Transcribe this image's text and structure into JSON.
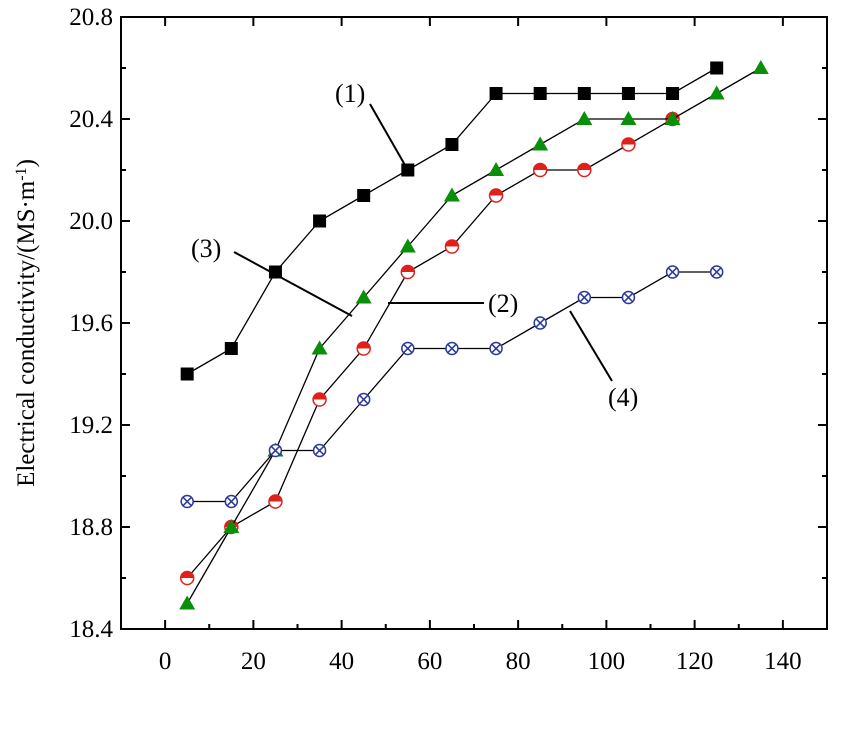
{
  "chart_data": {
    "type": "line",
    "xlabel": "",
    "ylabel": "Electrical conductivity/(MS·m",
    "ylabel_sup": "-1",
    "ylabel_close": ")",
    "xlim": [
      -10,
      150
    ],
    "ylim": [
      18.4,
      20.8
    ],
    "x_ticks": [
      0,
      20,
      40,
      60,
      80,
      100,
      120,
      140
    ],
    "x_tick_labels": [
      "0",
      "20",
      "40",
      "60",
      "80",
      "100",
      "120",
      "140"
    ],
    "y_ticks": [
      18.4,
      18.8,
      19.2,
      19.6,
      20.0,
      20.4,
      20.8
    ],
    "y_tick_labels": [
      "18.4",
      "18.8",
      "19.2",
      "19.6",
      "20.0",
      "20.4",
      "20.8"
    ],
    "grid": false,
    "series": [
      {
        "id": "s1",
        "marker": "square",
        "color": "#000000",
        "x": [
          5,
          15,
          25,
          35,
          45,
          55,
          65,
          75,
          85,
          95,
          105,
          115,
          125
        ],
        "y": [
          19.4,
          19.5,
          19.8,
          20.0,
          20.1,
          20.2,
          20.3,
          20.5,
          20.5,
          20.5,
          20.5,
          20.5,
          20.6
        ]
      },
      {
        "id": "s2",
        "marker": "half-circle",
        "color": "#e0201b",
        "x": [
          5,
          15,
          25,
          35,
          45,
          55,
          65,
          75,
          85,
          95,
          105,
          115
        ],
        "y": [
          18.6,
          18.8,
          18.9,
          19.3,
          19.5,
          19.8,
          19.9,
          20.1,
          20.2,
          20.2,
          20.3,
          20.4
        ]
      },
      {
        "id": "s3",
        "marker": "triangle",
        "color": "#0a8f0a",
        "x": [
          5,
          15,
          25,
          35,
          45,
          55,
          65,
          75,
          85,
          95,
          105,
          115,
          125,
          135
        ],
        "y": [
          18.5,
          18.8,
          19.1,
          19.5,
          19.7,
          19.9,
          20.1,
          20.2,
          20.3,
          20.4,
          20.4,
          20.4,
          20.5,
          20.6
        ]
      },
      {
        "id": "s4",
        "marker": "crossed-circle",
        "color": "#2b3a9b",
        "x": [
          5,
          15,
          25,
          35,
          45,
          55,
          65,
          75,
          85,
          95,
          105,
          115,
          125
        ],
        "y": [
          18.9,
          18.9,
          19.1,
          19.1,
          19.3,
          19.5,
          19.5,
          19.5,
          19.6,
          19.7,
          19.7,
          19.8,
          19.8
        ]
      }
    ],
    "annotations": [
      {
        "text": "(1)",
        "series": "s1",
        "at": [
          55,
          20.2
        ]
      },
      {
        "text": "(2)",
        "series": "s3",
        "at": [
          45,
          19.7
        ]
      },
      {
        "text": "(3)",
        "series": "s1",
        "at": [
          25,
          19.8
        ]
      },
      {
        "text": "(4)",
        "series": "s4",
        "at": [
          90,
          19.65
        ]
      }
    ]
  }
}
